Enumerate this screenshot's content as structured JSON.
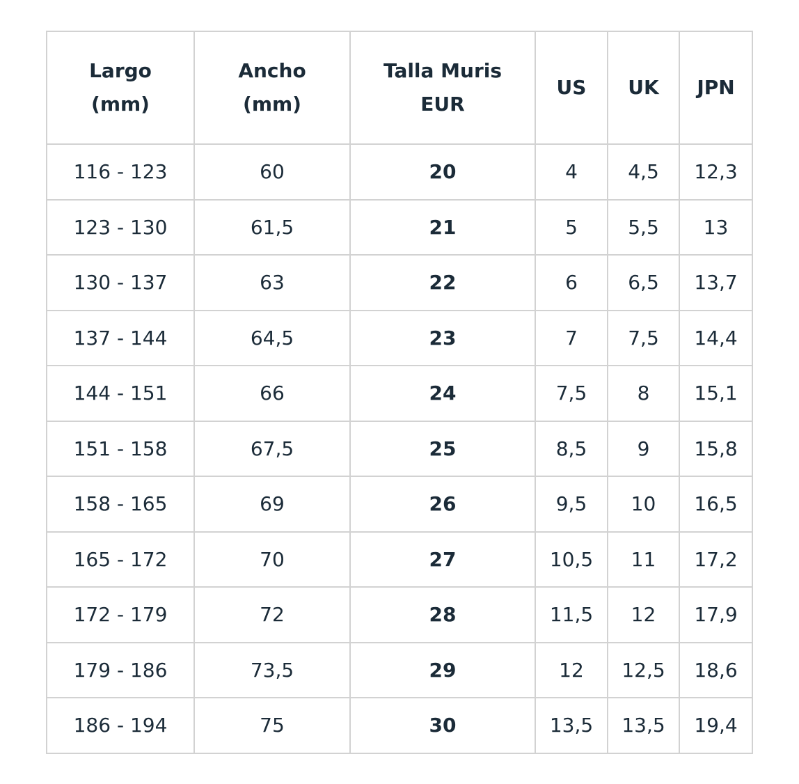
{
  "table": {
    "header": [
      [
        "Largo",
        "(mm)"
      ],
      [
        "Ancho",
        "(mm)"
      ],
      [
        "Talla Muris",
        "EUR"
      ],
      [
        "US"
      ],
      [
        "UK"
      ],
      [
        "JPN"
      ]
    ],
    "rows": [
      [
        "116 - 123",
        "60",
        "20",
        "4",
        "4,5",
        "12,3"
      ],
      [
        "123 - 130",
        "61,5",
        "21",
        "5",
        "5,5",
        "13"
      ],
      [
        "130 - 137",
        "63",
        "22",
        "6",
        "6,5",
        "13,7"
      ],
      [
        "137 - 144",
        "64,5",
        "23",
        "7",
        "7,5",
        "14,4"
      ],
      [
        "144 - 151",
        "66",
        "24",
        "7,5",
        "8",
        "15,1"
      ],
      [
        "151 - 158",
        "67,5",
        "25",
        "8,5",
        "9",
        "15,8"
      ],
      [
        "158 - 165",
        "69",
        "26",
        "9,5",
        "10",
        "16,5"
      ],
      [
        "165 - 172",
        "70",
        "27",
        "10,5",
        "11",
        "17,2"
      ],
      [
        "172 - 179",
        "72",
        "28",
        "11,5",
        "12",
        "17,9"
      ],
      [
        "179 - 186",
        "73,5",
        "29",
        "12",
        "12,5",
        "18,6"
      ],
      [
        "186 - 194",
        "75",
        "30",
        "13,5",
        "13,5",
        "19,4"
      ]
    ]
  }
}
